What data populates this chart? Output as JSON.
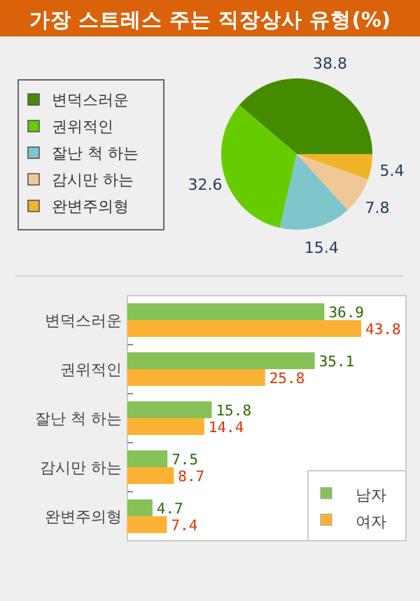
{
  "chart_data": [
    {
      "type": "pie",
      "title": "가장 스트레스 주는 직장상사 유형(%)",
      "categories": [
        "변덕스러운",
        "권위적인",
        "잘난 척 하는",
        "감시만 하는",
        "완변주의형"
      ],
      "values": [
        38.8,
        32.6,
        15.4,
        7.8,
        5.4
      ],
      "colors": [
        "#458b00",
        "#66cc00",
        "#7fc6cc",
        "#f0c896",
        "#f0b428"
      ],
      "data_labels": true,
      "legend": "left"
    },
    {
      "type": "bar",
      "orientation": "horizontal",
      "categories": [
        "변덕스러운",
        "권위적인",
        "잘난 척 하는",
        "감시만 하는",
        "완변주의형"
      ],
      "series": [
        {
          "name": "남자",
          "color": "#86c257",
          "values": [
            36.9,
            35.1,
            15.8,
            7.5,
            4.7
          ]
        },
        {
          "name": "여자",
          "color": "#fbb234",
          "values": [
            43.8,
            25.8,
            14.4,
            8.7,
            7.4
          ]
        }
      ],
      "data_labels": true,
      "legend": "bottom right"
    }
  ]
}
